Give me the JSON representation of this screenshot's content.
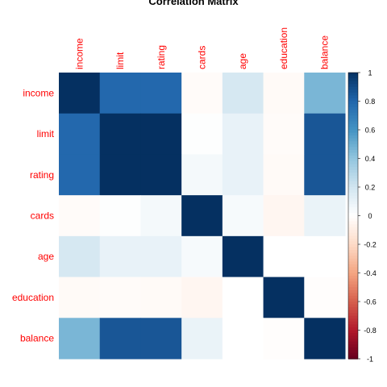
{
  "chart_data": {
    "type": "heatmap",
    "title": "Correlation Matrix",
    "variables": [
      "income",
      "limit",
      "rating",
      "cards",
      "age",
      "education",
      "balance"
    ],
    "matrix": [
      [
        1.0,
        0.79,
        0.79,
        -0.02,
        0.18,
        -0.03,
        0.46
      ],
      [
        0.79,
        1.0,
        1.0,
        0.01,
        0.1,
        -0.02,
        0.86
      ],
      [
        0.79,
        1.0,
        1.0,
        0.05,
        0.1,
        -0.03,
        0.86
      ],
      [
        -0.02,
        0.01,
        0.05,
        1.0,
        0.04,
        -0.05,
        0.09
      ],
      [
        0.18,
        0.1,
        0.1,
        0.04,
        1.0,
        0.0,
        0.0
      ],
      [
        -0.03,
        -0.02,
        -0.03,
        -0.05,
        0.0,
        1.0,
        -0.01
      ],
      [
        0.46,
        0.86,
        0.86,
        0.09,
        0.0,
        -0.01,
        1.0
      ]
    ],
    "colorbar": {
      "ticks": [
        "1",
        "0.8",
        "0.6",
        "0.4",
        "0.2",
        "0",
        "-0.2",
        "-0.4",
        "-0.6",
        "-0.8",
        "-1"
      ],
      "range": [
        -1,
        1
      ]
    },
    "colors": {
      "label": "#ff0000",
      "title": "#000000",
      "negative_end": "#67001f",
      "neutral": "#ffffff",
      "positive_end": "#053061"
    },
    "grid": false,
    "legend_placement": "right"
  }
}
